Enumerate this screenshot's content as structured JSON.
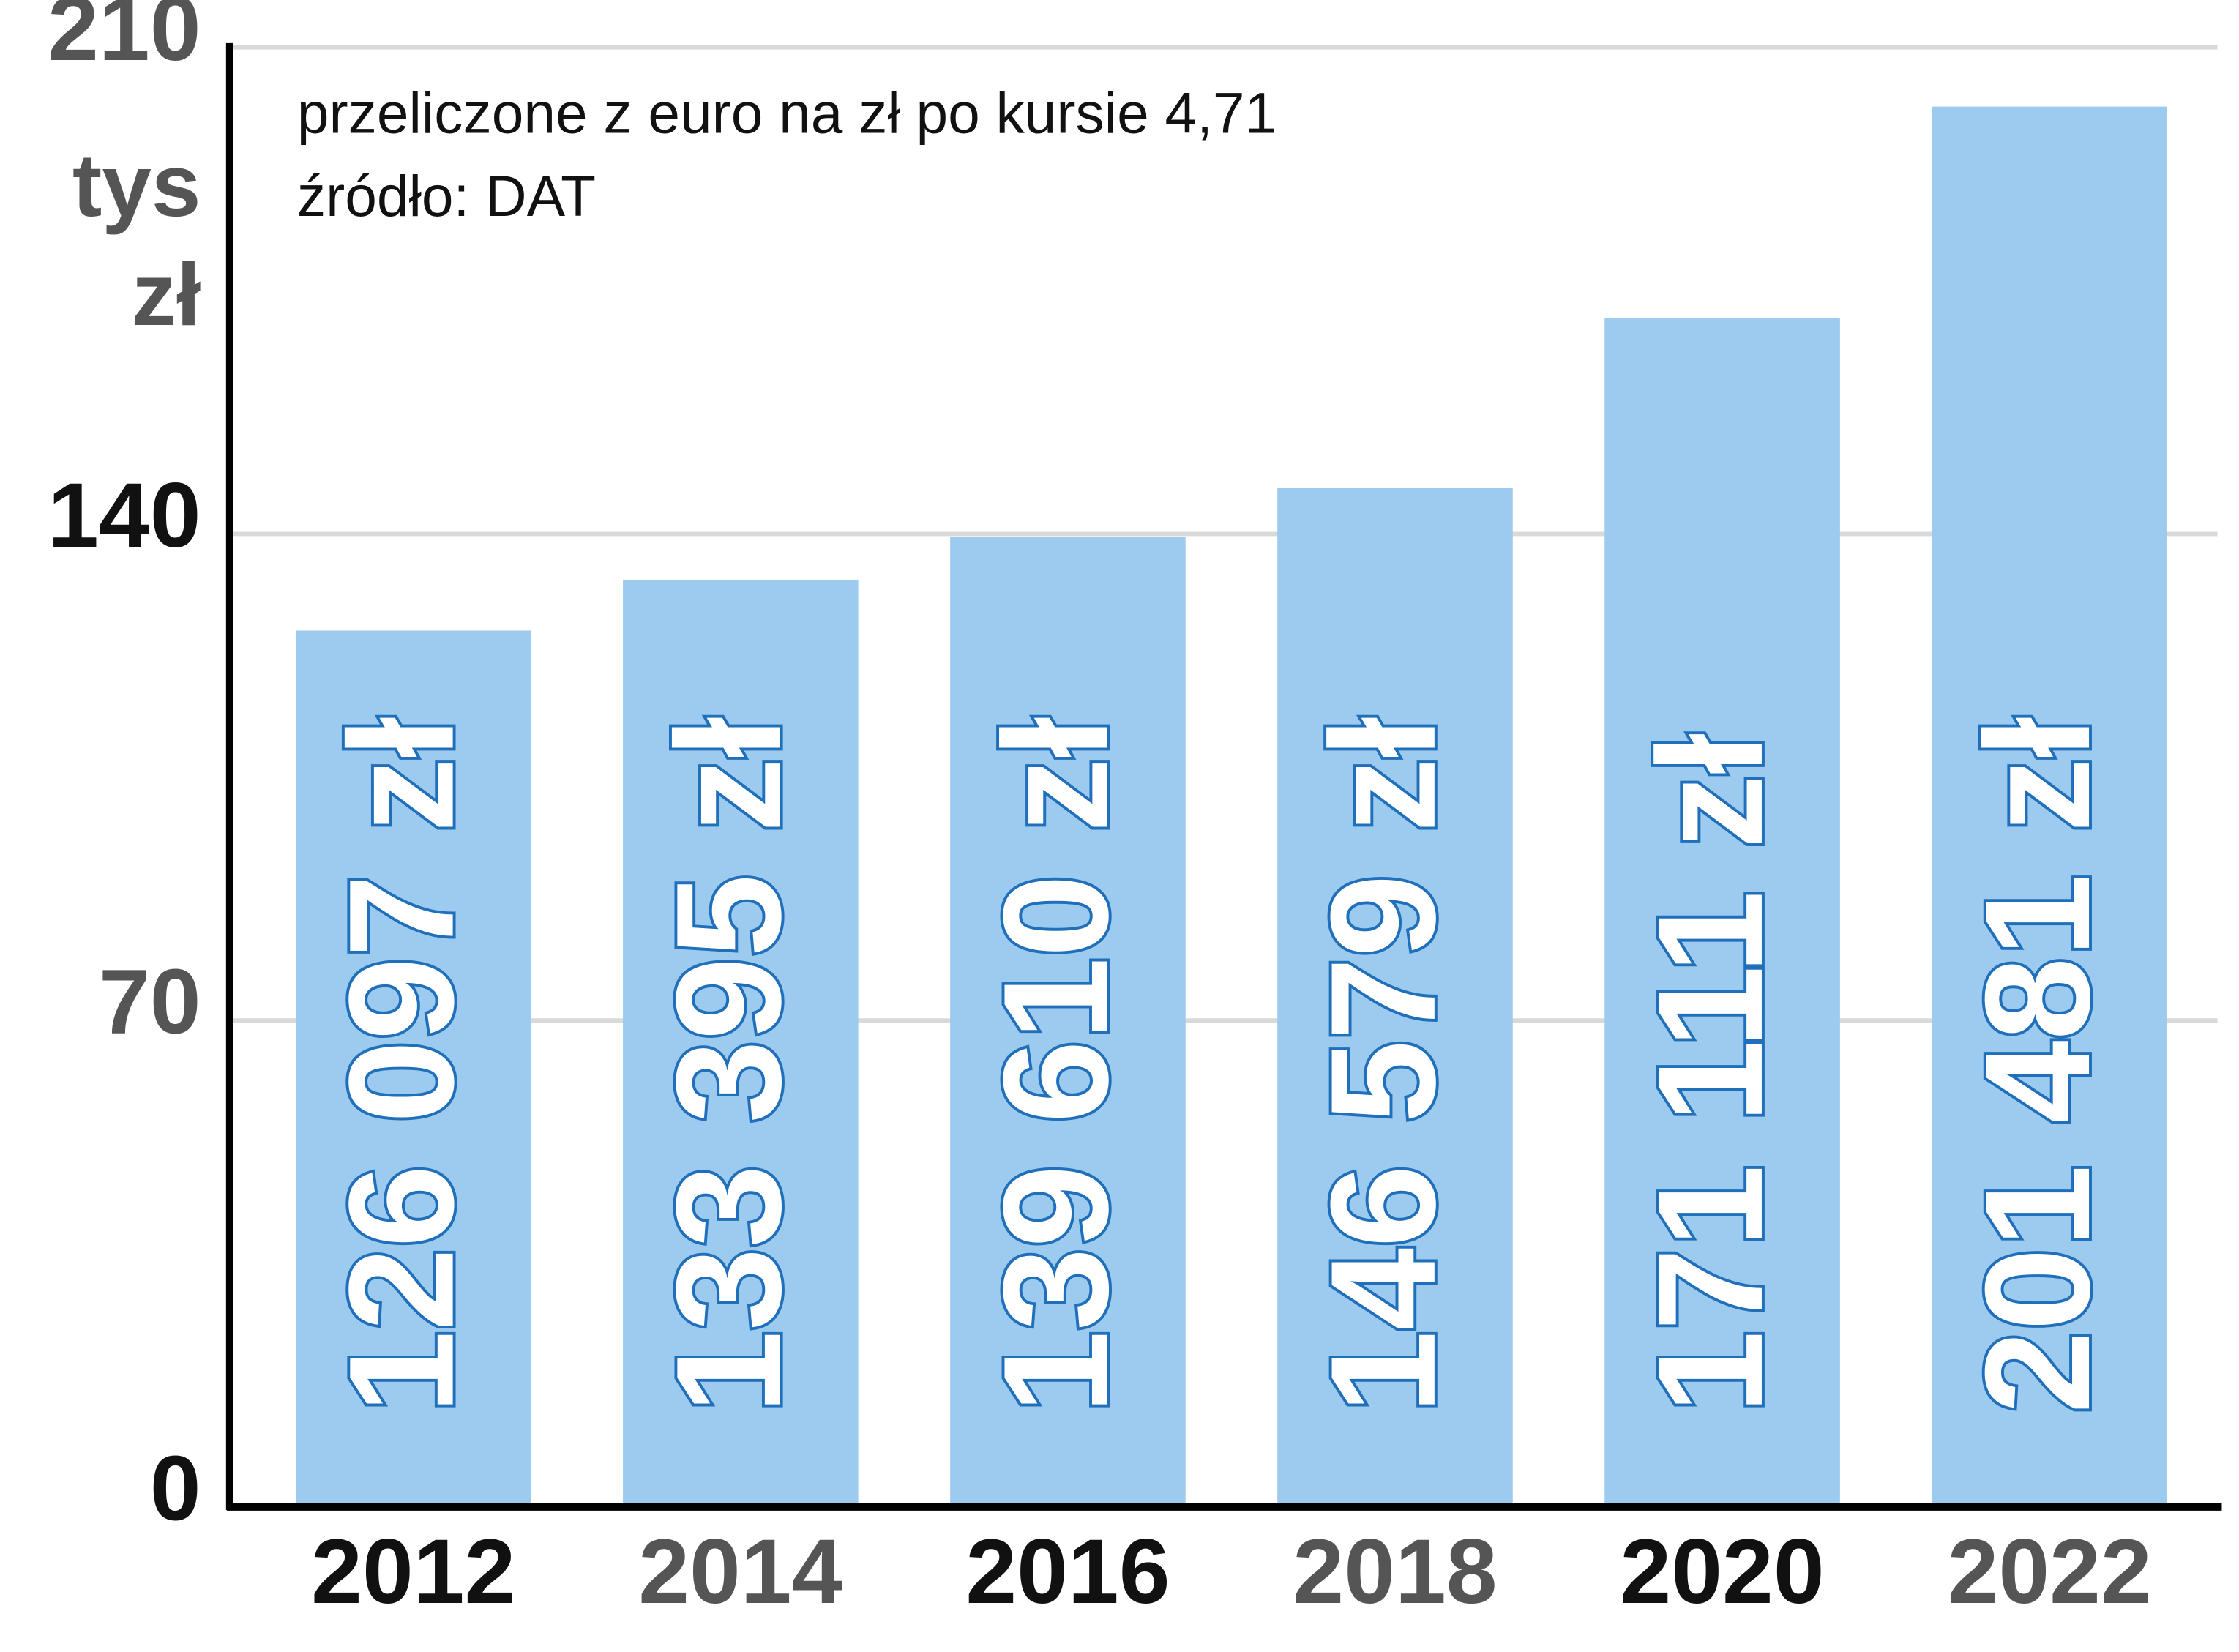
{
  "chart_data": {
    "type": "bar",
    "subtitle_lines": [
      "przeliczone z euro na zł po kursie 4,71",
      "źródło: DAT"
    ],
    "ylabel_lines": [
      "tys",
      "zł"
    ],
    "categories": [
      "2012",
      "2014",
      "2016",
      "2018",
      "2020",
      "2022"
    ],
    "values": [
      126.097,
      133.395,
      139.61,
      146.579,
      171.111,
      201.481
    ],
    "value_labels": [
      "126 097 zł",
      "133 395 zł",
      "139 610 zł",
      "146 579 zł",
      "171 111 zł",
      "201 481 zł"
    ],
    "color": "#9dcbef",
    "label_stroke": "#1f6fba",
    "ylim": [
      0,
      210
    ],
    "yticks": [
      0,
      70,
      140,
      210
    ],
    "grid": true
  }
}
